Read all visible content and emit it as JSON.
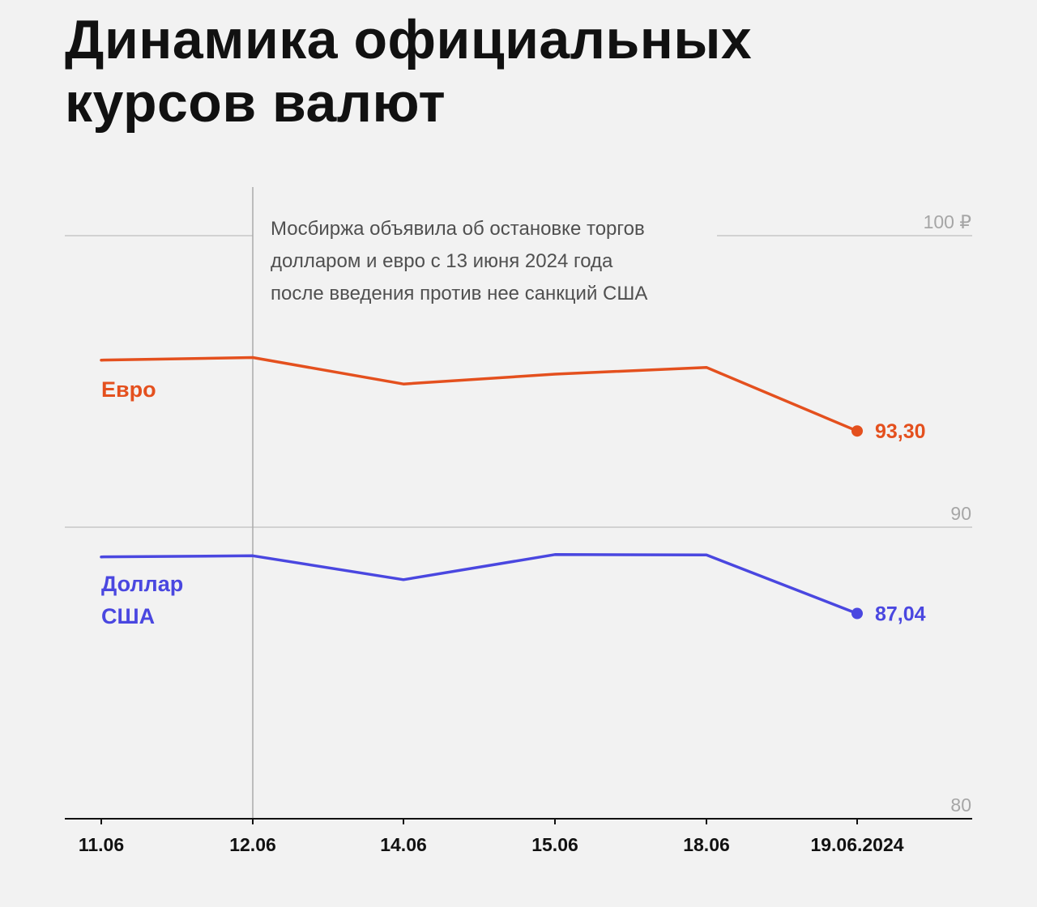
{
  "title_lines": [
    "Динамика официальных",
    "курсов валют"
  ],
  "annotation_lines": [
    "Мосбиржа объявила об остановке торгов",
    "долларом и евро с 13 июня 2024 года",
    "после введения против нее санкций США"
  ],
  "colors": {
    "eur": "#e4501e",
    "usd": "#4a47e0",
    "grid": "#c8c8c8",
    "axis": "#111111"
  },
  "chart_data": {
    "type": "line",
    "categories": [
      "11.06",
      "12.06",
      "14.06",
      "15.06",
      "18.06",
      "19.06.2024"
    ],
    "ylim": [
      80,
      100
    ],
    "yticks": [
      {
        "value": 100,
        "label": "100 ₽"
      },
      {
        "value": 90,
        "label": "90"
      },
      {
        "value": 80,
        "label": "80"
      }
    ],
    "marker_category_index": 1,
    "series": [
      {
        "name": "Евро",
        "label_lines": [
          "Евро"
        ],
        "color": "#e4501e",
        "values": [
          95.73,
          95.82,
          94.91,
          95.25,
          95.48,
          93.3
        ],
        "end_label": "93,30"
      },
      {
        "name": "Доллар США",
        "label_lines": [
          "Доллар",
          "США"
        ],
        "color": "#4a47e0",
        "values": [
          88.98,
          89.02,
          88.2,
          89.06,
          89.05,
          87.04
        ],
        "end_label": "87,04"
      }
    ],
    "grid": true
  }
}
